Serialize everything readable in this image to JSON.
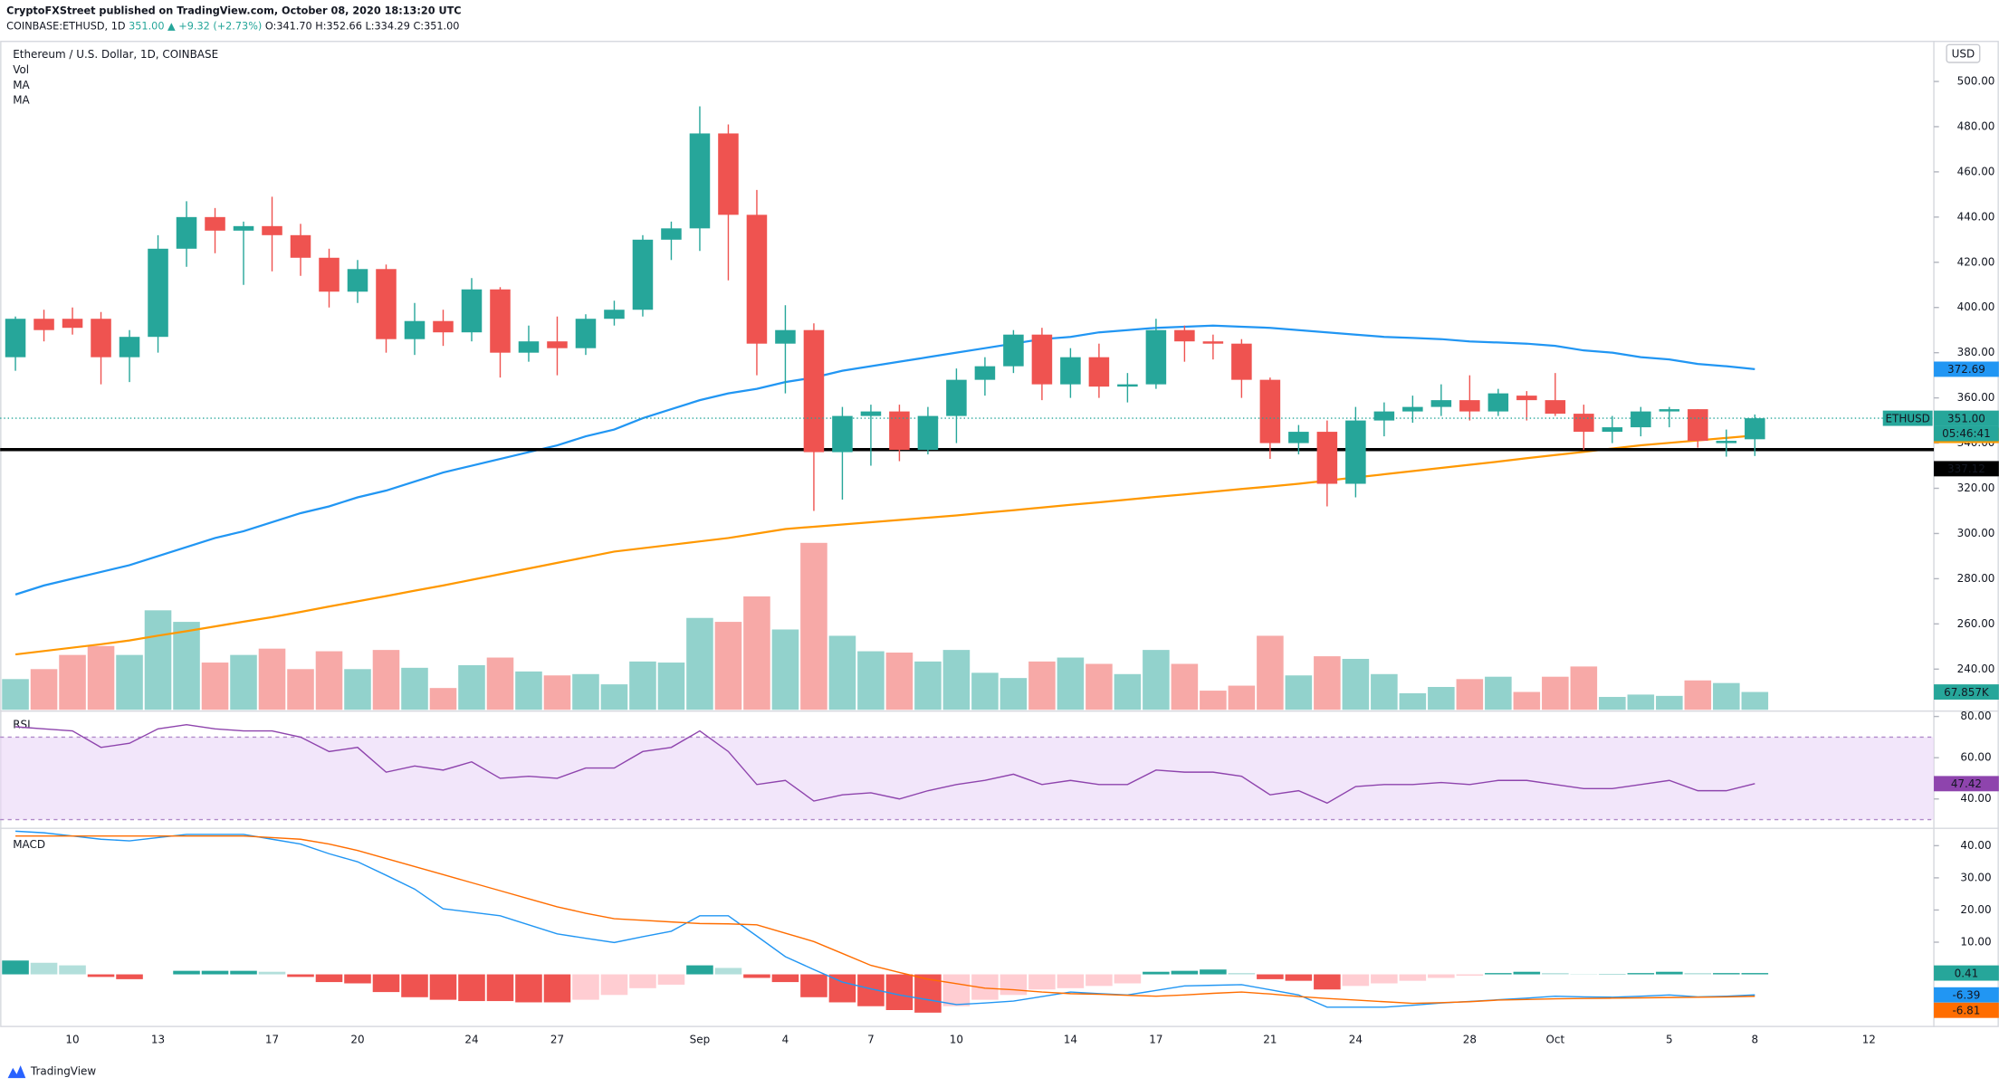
{
  "header": {
    "publisher": "CryptoFXStreet published on TradingView.com, October 08, 2020 18:13:20 UTC",
    "symbol": "COINBASE:ETHUSD, 1D",
    "change": "351.00 ▲ +9.32 (+2.73%)",
    "ohlc": "O:341.70 H:352.66 L:334.29 C:351.00",
    "brand": "TradingView"
  },
  "chart_data": [
    {
      "type": "candlestick",
      "title": "Ethereum / U.S. Dollar, 1D, COINBASE",
      "axis_unit": "USD",
      "categories": [
        null,
        null,
        "10",
        null,
        null,
        "13",
        null,
        null,
        null,
        "17",
        null,
        null,
        "20",
        null,
        null,
        null,
        "24",
        null,
        null,
        "27",
        null,
        null,
        null,
        null,
        "Sep",
        null,
        null,
        "4",
        null,
        null,
        "7",
        null,
        null,
        "10",
        null,
        null,
        null,
        "14",
        null,
        null,
        "17",
        null,
        null,
        null,
        "21",
        null,
        null,
        "24",
        null,
        null,
        null,
        "28",
        null,
        null,
        "Oct",
        null,
        null,
        null,
        "5",
        null,
        null,
        "8"
      ],
      "future_categories": [
        null,
        null,
        null,
        "12"
      ],
      "open": [
        378,
        395,
        395,
        395,
        378,
        387,
        426,
        440,
        434,
        436,
        432,
        422,
        407,
        417,
        386,
        394,
        389,
        408,
        380,
        385,
        382,
        395,
        399,
        430,
        435,
        477,
        441,
        384,
        390,
        336,
        352,
        354,
        337,
        352,
        368,
        374,
        388,
        366,
        378,
        365,
        366,
        390,
        385,
        384,
        368,
        340,
        345,
        322,
        350,
        354,
        356,
        359,
        354,
        361,
        359,
        353,
        345,
        347,
        354,
        355,
        340,
        341.7
      ],
      "high": [
        396,
        399,
        400,
        398,
        390,
        432,
        447,
        444,
        438,
        449,
        437,
        426,
        421,
        419,
        402,
        399,
        413,
        409,
        392,
        396,
        397,
        403,
        432,
        438,
        489,
        481,
        452,
        401,
        393,
        356,
        357,
        357,
        356,
        373,
        378,
        390,
        391,
        382,
        384,
        371,
        395,
        392,
        388,
        386,
        369,
        348,
        350,
        356,
        358,
        361,
        366,
        370,
        364,
        363,
        371,
        357,
        352,
        356,
        356,
        355,
        346,
        352.66
      ],
      "low": [
        372,
        385,
        388,
        366,
        367,
        380,
        418,
        424,
        410,
        416,
        414,
        400,
        402,
        380,
        379,
        383,
        385,
        369,
        376,
        370,
        379,
        392,
        396,
        421,
        425,
        412,
        370,
        362,
        310,
        315,
        330,
        332,
        335,
        340,
        361,
        371,
        359,
        360,
        360,
        358,
        364,
        376,
        377,
        360,
        333,
        335,
        312,
        316,
        343,
        349,
        352,
        350,
        352,
        350,
        352,
        337,
        340,
        343,
        347,
        338,
        334,
        334.29
      ],
      "close": [
        395,
        390,
        391,
        378,
        387,
        426,
        440,
        434,
        436,
        432,
        422,
        407,
        417,
        386,
        394,
        389,
        408,
        380,
        385,
        382,
        395,
        399,
        430,
        435,
        477,
        441,
        384,
        390,
        336,
        352,
        354,
        337,
        352,
        368,
        374,
        388,
        366,
        378,
        365,
        366,
        390,
        385,
        384,
        368,
        340,
        345,
        322,
        350,
        354,
        356,
        359,
        354,
        362,
        359,
        353,
        345,
        347,
        354,
        355,
        341,
        341,
        351
      ],
      "up_color": "#26a69a",
      "down_color": "#ef5350",
      "ylim": [
        222,
        518
      ],
      "yticks": [
        {
          "value": 500,
          "label": "500.00"
        },
        {
          "value": 480,
          "label": "480.00"
        },
        {
          "value": 460,
          "label": "460.00"
        },
        {
          "value": 440,
          "label": "440.00"
        },
        {
          "value": 420,
          "label": "420.00"
        },
        {
          "value": 400,
          "label": "400.00"
        },
        {
          "value": 380,
          "label": "380.00"
        },
        {
          "value": 360,
          "label": "360.00"
        },
        {
          "value": 340,
          "label": "340.00"
        },
        {
          "value": 320,
          "label": "320.00"
        },
        {
          "value": 300,
          "label": "300.00"
        },
        {
          "value": 280,
          "label": "280.00"
        },
        {
          "value": 260,
          "label": "260.00"
        },
        {
          "value": 240,
          "label": "240.00"
        }
      ],
      "series": [
        {
          "name": "MA",
          "color": "#2196f3",
          "values": [
            273,
            277,
            280,
            283,
            286,
            290,
            294,
            298,
            301,
            305,
            309,
            312,
            316,
            319,
            323,
            327,
            330,
            333,
            336,
            339,
            343,
            346,
            351,
            355,
            359,
            362,
            364,
            367,
            369,
            372,
            374,
            376,
            378,
            380,
            382,
            384,
            386,
            387,
            389,
            390,
            391,
            391.5,
            392,
            391.5,
            391,
            390,
            389,
            388,
            387,
            386.5,
            386,
            385,
            384.5,
            384,
            383,
            381,
            380,
            378,
            377,
            375,
            374,
            372.69
          ]
        },
        {
          "name": "MA",
          "color": "#ff9800",
          "values": [
            246.5,
            248,
            249.5,
            251,
            252.7,
            254.8,
            256.8,
            258.9,
            261,
            263,
            265.3,
            267.7,
            270,
            272.3,
            274.7,
            277,
            279.5,
            282,
            284.5,
            287,
            289.5,
            292,
            293.5,
            295,
            296.5,
            298,
            300,
            302,
            303,
            304,
            305,
            306,
            307,
            308,
            309.2,
            310.3,
            311.5,
            312.7,
            313.8,
            315,
            316.2,
            317.3,
            318.5,
            319.7,
            320.8,
            322,
            323.4,
            324.8,
            326.2,
            327.6,
            329,
            330.4,
            331.8,
            333.3,
            334.7,
            336.1,
            337.6,
            339,
            340.1,
            341.2,
            342.3,
            343.38
          ]
        }
      ],
      "last_price": {
        "symbol": "ETHUSD",
        "label": "351.00",
        "countdown": "05:46:41"
      },
      "hline": {
        "value": 337.12,
        "color": "#000000"
      }
    },
    {
      "type": "bar",
      "name": "Vol",
      "up_color": "#26a69a",
      "down_color": "#ef5350",
      "values": [
        117,
        155,
        209,
        243,
        209,
        379,
        335,
        180,
        209,
        233,
        155,
        223,
        155,
        228,
        160,
        83,
        170,
        199,
        146,
        131,
        136,
        97,
        184,
        180,
        350,
        335,
        432,
        306,
        636,
        282,
        223,
        218,
        184,
        228,
        141,
        121,
        184,
        199,
        175,
        136,
        228,
        175,
        73,
        92,
        282,
        131,
        204,
        194,
        136,
        63,
        87,
        117,
        126,
        68,
        126,
        165,
        49,
        58,
        53,
        112,
        102,
        67.857
      ],
      "last_label": "67.857K"
    },
    {
      "type": "line",
      "name": "RSI",
      "color": "#8e44ad",
      "band_color": "#ead6f7",
      "values": [
        75,
        74,
        73,
        65,
        67,
        74,
        76,
        74,
        73,
        73,
        70,
        63,
        65,
        53,
        56,
        54,
        58,
        50,
        51,
        50,
        55,
        55,
        63,
        65,
        73,
        63,
        47,
        49,
        39,
        42,
        43,
        40,
        44,
        47,
        49,
        52,
        47,
        49,
        47,
        47,
        54,
        53,
        53,
        51,
        42,
        44,
        38,
        46,
        47,
        47,
        48,
        47,
        49,
        49,
        47,
        45,
        45,
        47,
        49,
        44,
        44,
        47.42
      ],
      "band": [
        30,
        70
      ],
      "ylim": [
        27,
        82
      ],
      "yticks": [
        {
          "value": 80,
          "label": "80.00"
        },
        {
          "value": 60,
          "label": "60.00"
        },
        {
          "value": 40,
          "label": "40.00"
        }
      ]
    },
    {
      "type": "macd",
      "name": "MACD",
      "macd_color": "#2196f3",
      "signal_color": "#ff6d00",
      "macd": [
        44.5,
        44,
        43,
        42,
        41.5,
        42.5,
        43.5,
        43.5,
        43.5,
        42,
        40.5,
        37.5,
        35,
        30.8,
        26.5,
        20.4,
        19.3,
        18.2,
        15.4,
        12.6,
        11.2,
        9.9,
        11.7,
        13.4,
        18.2,
        18.2,
        11.9,
        5.5,
        1.5,
        -2.4,
        -4.5,
        -6.4,
        -7.9,
        -9.4,
        -8.9,
        -8.3,
        -6.9,
        -5.5,
        -6,
        -6.4,
        -5,
        -3.6,
        -3.4,
        -3.2,
        -4.8,
        -6.4,
        -10.2,
        -10.2,
        -10.2,
        -9.6,
        -8.9,
        -8.4,
        -7.9,
        -7.4,
        -6.8,
        -7,
        -7.1,
        -6.8,
        -6.4,
        -7,
        -6.8,
        -6.39
      ],
      "signal": [
        43,
        43,
        43,
        43,
        43,
        43,
        43,
        43,
        43,
        42.5,
        42,
        40.5,
        38.5,
        36,
        33.5,
        31,
        28.5,
        26,
        23.5,
        21,
        19,
        17.3,
        16.8,
        16.3,
        15.8,
        15.7,
        15.4,
        12.8,
        10.2,
        6.5,
        2.8,
        0.6,
        -1.5,
        -2.9,
        -4.3,
        -4.8,
        -5.5,
        -6,
        -6.2,
        -6.5,
        -6.8,
        -6.4,
        -5.9,
        -5.5,
        -6.1,
        -6.9,
        -7.5,
        -8,
        -8.5,
        -9,
        -8.8,
        -8.5,
        -8,
        -7.8,
        -7.6,
        -7.5,
        -7.4,
        -7.3,
        -7.2,
        -7.1,
        -7,
        -6.81
      ],
      "histogram": [
        4.3,
        3.6,
        2.8,
        -0.8,
        -1.5,
        0,
        1.1,
        1.1,
        1.1,
        0.8,
        -0.8,
        -2.4,
        -2.8,
        -5.5,
        -7.1,
        -7.9,
        -8.3,
        -8.3,
        -8.7,
        -8.7,
        -7.9,
        -6.4,
        -4.3,
        -3.2,
        2.8,
        2,
        -1.1,
        -2.4,
        -7.1,
        -8.7,
        -9.9,
        -11.1,
        -11.9,
        -9.9,
        -7.9,
        -6.4,
        -4.7,
        -4.3,
        -3.6,
        -2.8,
        0.8,
        1.1,
        1.5,
        0.4,
        -1.5,
        -2,
        -4.7,
        -3.6,
        -2.8,
        -2,
        -1.1,
        -0.4,
        0.4,
        0.8,
        0.4,
        0.1,
        0.1,
        0.4,
        0.8,
        0.4,
        0.4,
        0.41
      ],
      "ylim": [
        -16,
        45
      ],
      "yticks": [
        {
          "value": 40,
          "label": "40.00"
        },
        {
          "value": 30,
          "label": "30.00"
        },
        {
          "value": 20,
          "label": "20.00"
        },
        {
          "value": 10,
          "label": "10.00"
        }
      ]
    }
  ]
}
